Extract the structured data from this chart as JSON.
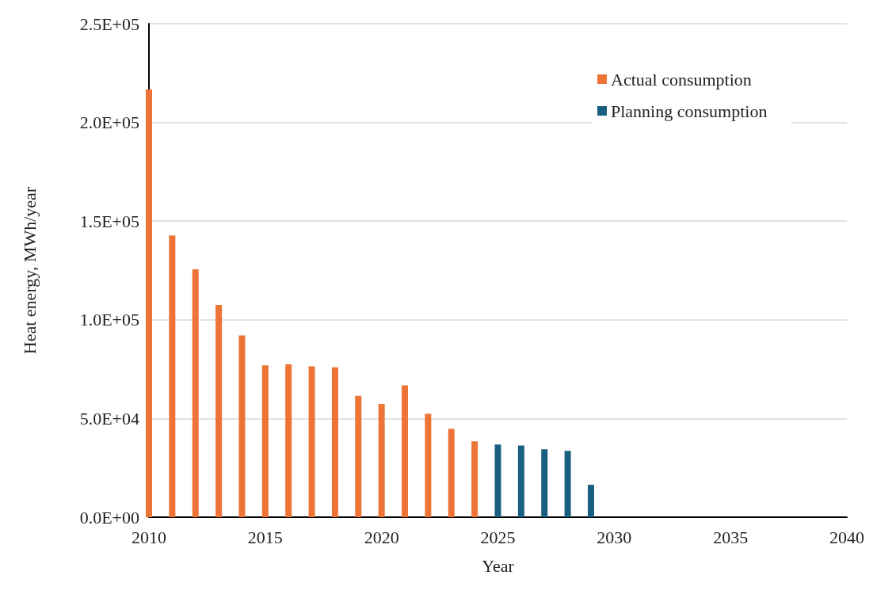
{
  "chart_data": {
    "type": "bar",
    "xlabel": "Year",
    "ylabel": "Heat energy, MWh/year",
    "series": [
      {
        "name": "Actual consumption",
        "color": "#ed7336",
        "x": [
          2010,
          2011,
          2012,
          2013,
          2014,
          2015,
          2016,
          2017,
          2018,
          2019,
          2020,
          2021,
          2022,
          2023,
          2024
        ],
        "values": [
          216700,
          142800,
          125600,
          107500,
          92100,
          76900,
          77400,
          76400,
          75900,
          61500,
          57400,
          66800,
          52400,
          44700,
          38400
        ]
      },
      {
        "name": "Planning consumption",
        "color": "#1b5f80",
        "x": [
          2025,
          2026,
          2027,
          2028,
          2029
        ],
        "values": [
          36800,
          36300,
          34400,
          33600,
          16400
        ]
      }
    ],
    "xlim": [
      2010,
      2040
    ],
    "xticks": [
      2010,
      2015,
      2020,
      2025,
      2030,
      2035,
      2040
    ],
    "ylim": [
      0,
      250000
    ],
    "yticks": [
      {
        "value": 0,
        "label": "0.0E+00"
      },
      {
        "value": 50000,
        "label": "5.0E+04"
      },
      {
        "value": 100000,
        "label": "1.0E+05"
      },
      {
        "value": 150000,
        "label": "1.5E+05"
      },
      {
        "value": 200000,
        "label": "2.0E+05"
      },
      {
        "value": 250000,
        "label": "2.5E+05"
      }
    ],
    "grid": "y",
    "legend": "top right"
  }
}
